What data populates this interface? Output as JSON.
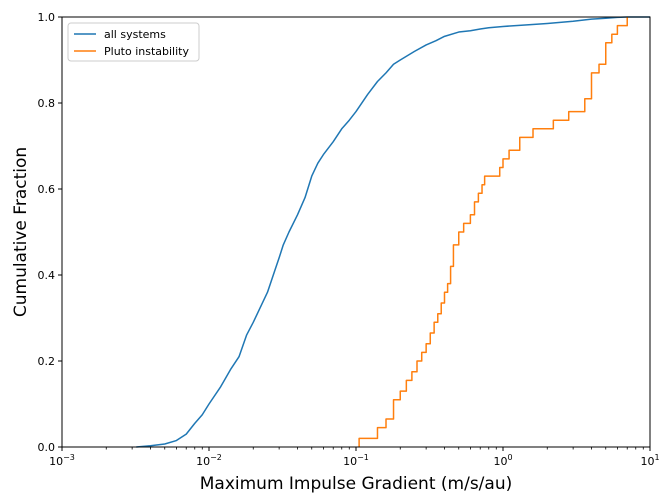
{
  "chart_data": {
    "type": "line",
    "title": "",
    "xlabel": "Maximum Impulse Gradient (m/s/au)",
    "ylabel": "Cumulative Fraction",
    "xscale": "log",
    "xlim": [
      0.001,
      10
    ],
    "ylim": [
      0,
      1
    ],
    "grid": false,
    "legend_position": "top-left",
    "x_ticks": [
      {
        "base": "10",
        "exp": "−3",
        "value": 0.001
      },
      {
        "base": "10",
        "exp": "−2",
        "value": 0.01
      },
      {
        "base": "10",
        "exp": "−1",
        "value": 0.1
      },
      {
        "base": "10",
        "exp": "0",
        "value": 1
      },
      {
        "base": "10",
        "exp": "1",
        "value": 10
      }
    ],
    "y_ticks": [
      {
        "label": "0.0",
        "value": 0.0
      },
      {
        "label": "0.2",
        "value": 0.2
      },
      {
        "label": "0.4",
        "value": 0.4
      },
      {
        "label": "0.6",
        "value": 0.6
      },
      {
        "label": "0.8",
        "value": 0.8
      },
      {
        "label": "1.0",
        "value": 1.0
      }
    ],
    "series": [
      {
        "name": "all systems",
        "color": "#1f77b4",
        "style": "smooth",
        "x": [
          0.0032,
          0.004,
          0.005,
          0.006,
          0.007,
          0.008,
          0.009,
          0.01,
          0.012,
          0.014,
          0.016,
          0.018,
          0.02,
          0.022,
          0.025,
          0.028,
          0.03,
          0.032,
          0.035,
          0.04,
          0.045,
          0.05,
          0.055,
          0.06,
          0.07,
          0.08,
          0.09,
          0.1,
          0.12,
          0.14,
          0.16,
          0.18,
          0.2,
          0.25,
          0.3,
          0.35,
          0.4,
          0.5,
          0.6,
          0.7,
          0.8,
          1.0,
          1.5,
          2.0,
          3.0,
          4.0,
          5.0,
          6.0,
          7.0
        ],
        "y": [
          0.0,
          0.003,
          0.007,
          0.015,
          0.03,
          0.055,
          0.075,
          0.1,
          0.14,
          0.18,
          0.21,
          0.26,
          0.29,
          0.32,
          0.36,
          0.41,
          0.44,
          0.47,
          0.5,
          0.54,
          0.58,
          0.63,
          0.66,
          0.68,
          0.71,
          0.74,
          0.76,
          0.78,
          0.82,
          0.85,
          0.87,
          0.89,
          0.9,
          0.92,
          0.935,
          0.945,
          0.955,
          0.965,
          0.968,
          0.972,
          0.975,
          0.978,
          0.982,
          0.985,
          0.99,
          0.995,
          0.997,
          0.999,
          1.0
        ]
      },
      {
        "name": "Pluto instability",
        "color": "#ff7f0e",
        "style": "step",
        "x": [
          0.105,
          0.14,
          0.16,
          0.18,
          0.2,
          0.22,
          0.24,
          0.26,
          0.28,
          0.3,
          0.32,
          0.34,
          0.36,
          0.38,
          0.4,
          0.42,
          0.44,
          0.46,
          0.5,
          0.54,
          0.6,
          0.64,
          0.68,
          0.72,
          0.75,
          0.95,
          1.0,
          1.1,
          1.3,
          1.6,
          2.2,
          2.8,
          3.6,
          4.0,
          4.5,
          5.0,
          5.5,
          6.0,
          7.0
        ],
        "y": [
          0.02,
          0.045,
          0.065,
          0.11,
          0.13,
          0.155,
          0.175,
          0.2,
          0.22,
          0.24,
          0.265,
          0.29,
          0.31,
          0.335,
          0.36,
          0.38,
          0.42,
          0.47,
          0.5,
          0.52,
          0.54,
          0.57,
          0.59,
          0.61,
          0.63,
          0.65,
          0.67,
          0.69,
          0.72,
          0.74,
          0.76,
          0.78,
          0.81,
          0.87,
          0.89,
          0.94,
          0.96,
          0.98,
          1.0
        ]
      }
    ]
  }
}
